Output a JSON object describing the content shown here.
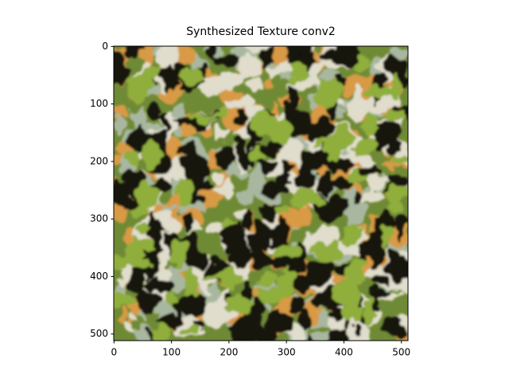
{
  "chart_data": {
    "type": "image",
    "title": "Synthesized Texture conv2",
    "xlim": [
      -0.5,
      511.5
    ],
    "ylim": [
      511.5,
      -0.5
    ],
    "xticks": [
      0,
      100,
      200,
      300,
      400,
      500
    ],
    "yticks": [
      0,
      100,
      200,
      300,
      400,
      500
    ]
  }
}
